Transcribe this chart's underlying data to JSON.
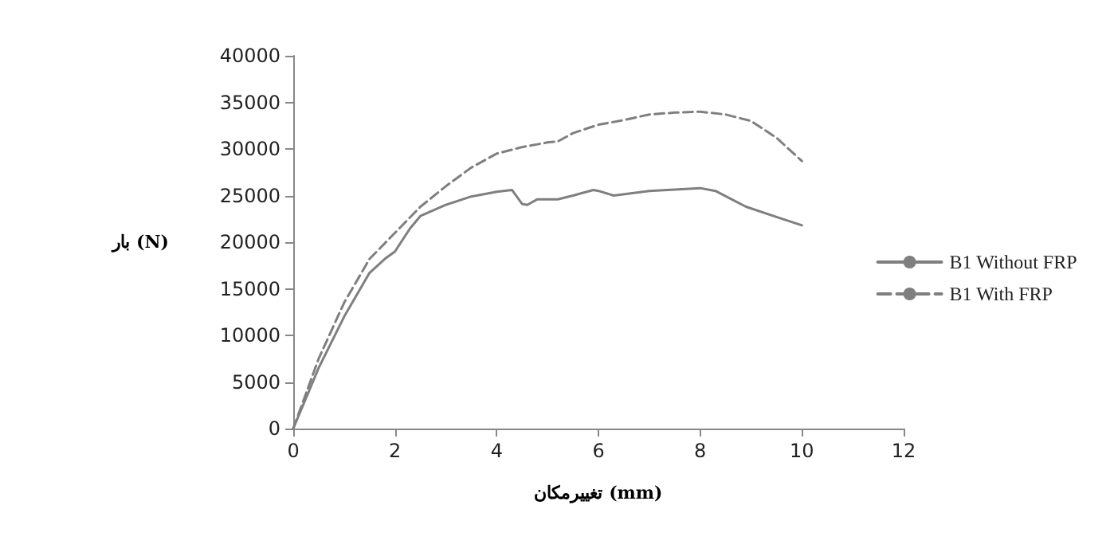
{
  "chart_data": {
    "type": "line",
    "xlabel": "تغییرمکان (mm)",
    "ylabel": "بار (N)",
    "xlim": [
      0,
      12
    ],
    "xticks": [
      0,
      2,
      4,
      6,
      8,
      10,
      12
    ],
    "ylim": [
      0,
      40000
    ],
    "yticks": [
      0,
      5000,
      10000,
      15000,
      20000,
      25000,
      30000,
      35000,
      40000
    ],
    "grid": false,
    "legend": "right",
    "marker": "none",
    "series": [
      {
        "name": "B1 Without FRP",
        "color": "#7f7f7f",
        "line_style": "solid",
        "x": [
          0,
          0.5,
          1,
          1.5,
          1.8,
          2,
          2.3,
          2.5,
          3,
          3.5,
          4,
          4.3,
          4.5,
          4.6,
          4.8,
          5.2,
          5.5,
          5.9,
          6,
          6.3,
          7,
          8,
          8.3,
          8.9,
          9.5,
          10
        ],
        "values": [
          0,
          6500,
          12000,
          16700,
          18200,
          19000,
          21500,
          22800,
          24000,
          24900,
          25400,
          25600,
          24100,
          24000,
          24600,
          24600,
          25000,
          25600,
          25500,
          25000,
          25500,
          25800,
          25500,
          23800,
          22700,
          21800
        ]
      },
      {
        "name": "B1 With FRP",
        "color": "#7f7f7f",
        "line_style": "dashed",
        "x": [
          0,
          0.5,
          1,
          1.5,
          2,
          2.5,
          3,
          3.5,
          4,
          4.5,
          5,
          5.2,
          5.5,
          6,
          6.5,
          7,
          7.5,
          8,
          8.5,
          9,
          9.5,
          10
        ],
        "values": [
          0,
          7500,
          13500,
          18200,
          21000,
          23800,
          26000,
          28000,
          29500,
          30200,
          30700,
          30800,
          31700,
          32600,
          33100,
          33700,
          33900,
          34000,
          33700,
          33000,
          31200,
          28700
        ]
      }
    ]
  }
}
